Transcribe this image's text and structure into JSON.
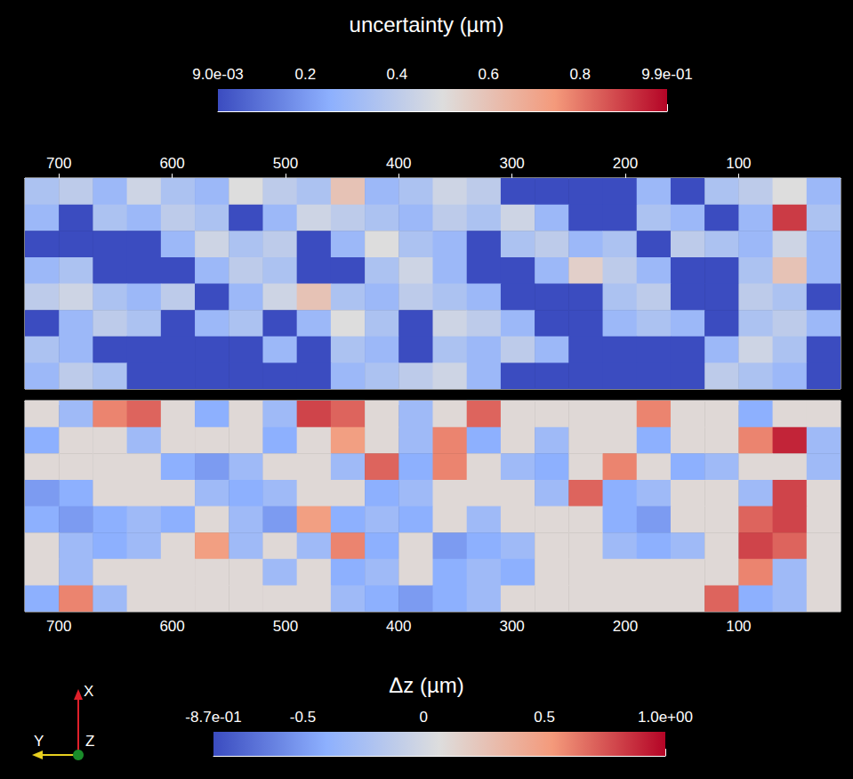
{
  "chart_data": [
    {
      "type": "heatmap",
      "title": "uncertainty (µm)",
      "xlim": [
        730,
        10
      ],
      "xticks": [
        700,
        600,
        500,
        400,
        300,
        200,
        100
      ],
      "ylim": [
        0,
        8
      ],
      "tick_labels": "x",
      "cells": [
        [
          0.35,
          0.4,
          0.3,
          0.45,
          0.35,
          0.3,
          0.5,
          0.4,
          0.35,
          0.6,
          0.3,
          0.35,
          0.45,
          0.4,
          0.01,
          0.01,
          0.01,
          0.01,
          0.3,
          0.01,
          0.35,
          0.4,
          0.5,
          0.3
        ],
        [
          0.3,
          0.01,
          0.35,
          0.3,
          0.4,
          0.35,
          0.01,
          0.3,
          0.45,
          0.4,
          0.35,
          0.3,
          0.4,
          0.35,
          0.45,
          0.3,
          0.01,
          0.01,
          0.35,
          0.3,
          0.01,
          0.3,
          0.9,
          0.35
        ],
        [
          0.01,
          0.01,
          0.01,
          0.01,
          0.3,
          0.45,
          0.35,
          0.4,
          0.01,
          0.3,
          0.5,
          0.35,
          0.3,
          0.01,
          0.35,
          0.4,
          0.3,
          0.35,
          0.01,
          0.4,
          0.35,
          0.3,
          0.45,
          0.3
        ],
        [
          0.3,
          0.35,
          0.01,
          0.01,
          0.01,
          0.3,
          0.4,
          0.35,
          0.01,
          0.01,
          0.35,
          0.45,
          0.3,
          0.01,
          0.01,
          0.3,
          0.55,
          0.4,
          0.3,
          0.01,
          0.01,
          0.35,
          0.6,
          0.3
        ],
        [
          0.4,
          0.45,
          0.35,
          0.3,
          0.4,
          0.01,
          0.3,
          0.45,
          0.6,
          0.35,
          0.3,
          0.4,
          0.35,
          0.3,
          0.01,
          0.01,
          0.01,
          0.35,
          0.4,
          0.01,
          0.01,
          0.4,
          0.35,
          0.01
        ],
        [
          0.01,
          0.3,
          0.4,
          0.35,
          0.01,
          0.3,
          0.35,
          0.01,
          0.3,
          0.5,
          0.35,
          0.01,
          0.45,
          0.4,
          0.3,
          0.01,
          0.01,
          0.3,
          0.35,
          0.3,
          0.01,
          0.35,
          0.4,
          0.3
        ],
        [
          0.35,
          0.3,
          0.01,
          0.01,
          0.01,
          0.01,
          0.01,
          0.3,
          0.01,
          0.35,
          0.3,
          0.01,
          0.35,
          0.3,
          0.4,
          0.3,
          0.01,
          0.01,
          0.01,
          0.01,
          0.3,
          0.45,
          0.35,
          0.01
        ],
        [
          0.3,
          0.4,
          0.35,
          0.01,
          0.01,
          0.01,
          0.01,
          0.01,
          0.01,
          0.3,
          0.35,
          0.4,
          0.45,
          0.3,
          0.01,
          0.01,
          0.01,
          0.01,
          0.01,
          0.01,
          0.4,
          0.35,
          0.3,
          0.01
        ]
      ],
      "colorbar": {
        "range": [
          0.009,
          0.99
        ],
        "ticks": [
          {
            "value": 0.009,
            "label": "9.0e-03"
          },
          0.2,
          0.4,
          0.6,
          0.8,
          {
            "value": 0.99,
            "label": "9.9e-01"
          }
        ]
      }
    },
    {
      "type": "heatmap",
      "title": "Δz (µm)",
      "xlim": [
        730,
        10
      ],
      "xticks": [
        700,
        600,
        500,
        400,
        300,
        200,
        100
      ],
      "ylim": [
        0,
        8
      ],
      "tick_labels": "x",
      "cells": [
        [
          0.1,
          -0.3,
          0.6,
          0.7,
          0.1,
          -0.4,
          0.1,
          -0.3,
          0.8,
          0.7,
          0.1,
          -0.3,
          0.1,
          0.7,
          0.1,
          0.1,
          0.1,
          0.1,
          0.6,
          0.1,
          0.1,
          -0.4,
          0.1,
          0.1
        ],
        [
          -0.4,
          0.1,
          0.1,
          -0.3,
          0.1,
          0.1,
          0.1,
          -0.4,
          0.1,
          0.5,
          0.1,
          -0.3,
          0.6,
          -0.4,
          0.1,
          -0.3,
          0.1,
          0.1,
          -0.4,
          0.1,
          0.1,
          0.6,
          0.9,
          -0.3
        ],
        [
          0.1,
          0.1,
          0.1,
          0.1,
          -0.4,
          -0.5,
          -0.3,
          0.1,
          0.1,
          -0.3,
          0.7,
          -0.4,
          0.6,
          0.1,
          -0.3,
          -0.4,
          0.1,
          0.6,
          0.1,
          -0.4,
          -0.3,
          0.1,
          0.1,
          -0.3
        ],
        [
          -0.5,
          -0.4,
          0.1,
          0.1,
          0.1,
          -0.3,
          -0.4,
          -0.3,
          0.1,
          0.1,
          -0.4,
          -0.3,
          0.1,
          0.1,
          0.1,
          -0.3,
          0.7,
          -0.4,
          -0.3,
          0.1,
          0.1,
          -0.3,
          0.8,
          0.1
        ],
        [
          -0.4,
          -0.5,
          -0.4,
          -0.3,
          -0.4,
          0.1,
          -0.3,
          -0.5,
          0.5,
          -0.4,
          -0.3,
          -0.4,
          0.1,
          -0.3,
          0.1,
          0.1,
          0.1,
          -0.4,
          -0.5,
          0.1,
          0.1,
          0.7,
          0.8,
          0.1
        ],
        [
          0.1,
          -0.3,
          -0.4,
          -0.3,
          0.1,
          0.5,
          -0.3,
          0.1,
          -0.3,
          0.6,
          -0.4,
          0.1,
          -0.5,
          -0.4,
          -0.3,
          0.1,
          0.1,
          -0.3,
          -0.4,
          -0.3,
          0.1,
          0.8,
          0.7,
          0.1
        ],
        [
          0.1,
          -0.3,
          0.1,
          0.1,
          0.1,
          0.1,
          0.1,
          -0.3,
          0.1,
          -0.4,
          -0.3,
          0.1,
          -0.4,
          -0.3,
          -0.4,
          0.1,
          0.1,
          0.1,
          0.1,
          0.1,
          0.1,
          0.6,
          -0.3,
          0.1
        ],
        [
          -0.4,
          0.6,
          -0.3,
          0.1,
          0.1,
          0.1,
          0.1,
          0.1,
          0.1,
          -0.3,
          -0.4,
          -0.5,
          -0.4,
          -0.3,
          0.1,
          0.1,
          0.1,
          0.1,
          0.1,
          0.1,
          0.7,
          -0.4,
          -0.3,
          0.1
        ]
      ],
      "colorbar": {
        "range": [
          -0.87,
          1.0
        ],
        "ticks": [
          {
            "value": -0.87,
            "label": "-8.7e-01"
          },
          -0.5,
          0,
          0.5,
          {
            "value": 1.0,
            "label": "1.0e+00"
          }
        ]
      }
    }
  ],
  "triad_labels": [
    "X",
    "Y",
    "Z"
  ]
}
